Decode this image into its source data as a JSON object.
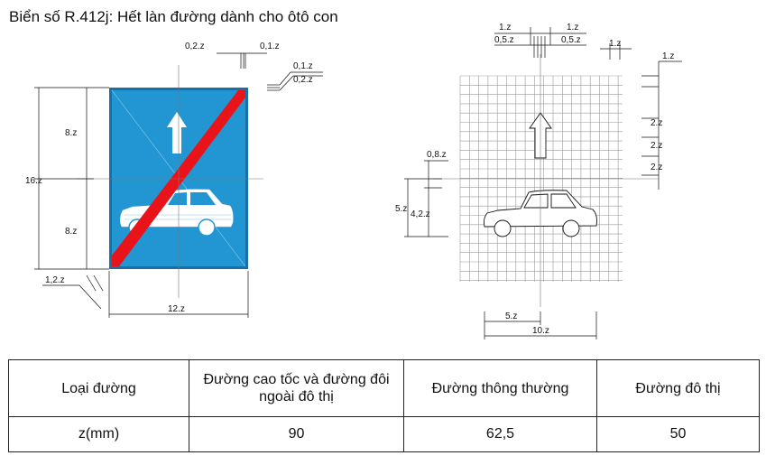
{
  "title": "Biển số R.412j: Hết làn đường dành cho ôtô con",
  "colors": {
    "sign_blue": "#2196d3",
    "sign_red": "#e8141a",
    "line": "#111111",
    "grid": "#9a9a9a"
  },
  "icons": [
    "up-arrow-icon",
    "car-icon"
  ],
  "left_dimensions": {
    "top_a": "0,2.z",
    "top_b": "0,1.z",
    "corner_a": "0,1.z",
    "corner_b": "0,2.z",
    "upper_half": "8.z",
    "lower_half": "8.z",
    "total_height": "16.z",
    "margin": "1,2.z",
    "total_width": "12.z"
  },
  "right_dimensions": {
    "top_1a": "1.z",
    "top_1b": "1.z",
    "top_05a": "0,5.z",
    "top_05b": "0,5.z",
    "top_1c": "1.z",
    "side_1": "1.z",
    "side_2a": "2.z",
    "side_2b": "2.z",
    "side_2c": "2.z",
    "left_08": "0,8.z",
    "left_5": "5.z",
    "left_42": "4,2.z",
    "bottom_5": "5.z",
    "bottom_10": "10.z"
  },
  "table": {
    "headers": [
      "Loại đường",
      "Đường cao tốc và đường đôi ngoài đô thị",
      "Đường thông thường",
      "Đường đô thị"
    ],
    "row_label": "z(mm)",
    "values": [
      "90",
      "62,5",
      "50"
    ]
  }
}
